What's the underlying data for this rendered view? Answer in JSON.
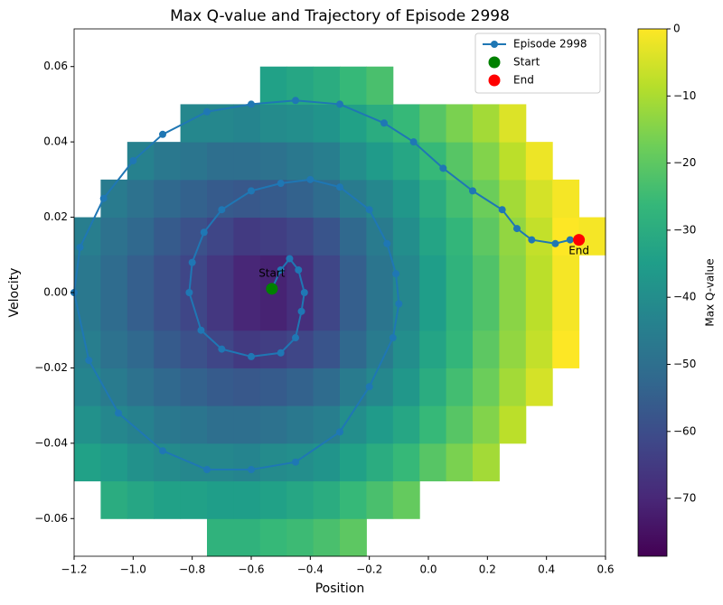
{
  "chart_data": {
    "type": "heatmap",
    "title": "Max Q-value and Trajectory of Episode 2998",
    "x_label": "Position",
    "y_label": "Velocity",
    "colorbar_label": "Max Q-value",
    "colormap": "viridis",
    "xlim": [
      -1.2,
      0.6
    ],
    "ylim": [
      -0.07,
      0.07
    ],
    "clim": [
      -78.6,
      0
    ],
    "xticks": [
      {
        "value": -1.2,
        "label": "−1.2"
      },
      {
        "value": -1.0,
        "label": "−1.0"
      },
      {
        "value": -0.8,
        "label": "−0.8"
      },
      {
        "value": -0.6,
        "label": "−0.6"
      },
      {
        "value": -0.4,
        "label": "−0.4"
      },
      {
        "value": -0.2,
        "label": "−0.2"
      },
      {
        "value": 0,
        "label": "0.0"
      },
      0.2,
      0.4,
      0.6
    ],
    "yticks": [
      {
        "value": -0.06,
        "label": "−0.06"
      },
      {
        "value": -0.04,
        "label": "−0.04"
      },
      {
        "value": -0.02,
        "label": "−0.02"
      },
      {
        "value": 0,
        "label": "0.00"
      },
      0.02,
      0.04,
      0.06
    ],
    "cticks": [
      0,
      {
        "value": -10,
        "label": "−10"
      },
      {
        "value": -20,
        "label": "−20"
      },
      {
        "value": -30,
        "label": "−30"
      },
      {
        "value": -40,
        "label": "−40"
      },
      {
        "value": -50,
        "label": "−50"
      },
      {
        "value": -60,
        "label": "−60"
      },
      {
        "value": -70,
        "label": "−70"
      }
    ],
    "heatmap": {
      "x_edges": [
        -1.2,
        -1.11,
        -1.02,
        -0.93,
        -0.84,
        -0.75,
        -0.66,
        -0.57,
        -0.48,
        -0.39,
        -0.3,
        -0.21,
        -0.12,
        -0.03,
        0.06,
        0.15,
        0.24,
        0.33,
        0.42,
        0.51,
        0.6
      ],
      "y_edges": [
        -0.07,
        -0.06,
        -0.05,
        -0.04,
        -0.03,
        -0.02,
        -0.01,
        0,
        0.01,
        0.02,
        0.03,
        0.04,
        0.05,
        0.06,
        0.07
      ],
      "values": [
        [
          null,
          null,
          null,
          null,
          null,
          -28,
          -28,
          -26,
          -25,
          -23,
          -20,
          null,
          null,
          null,
          null,
          null,
          null,
          null,
          null,
          null
        ],
        [
          null,
          -30,
          -32,
          -34,
          -34,
          -35,
          -35,
          -34,
          -32,
          -30,
          -26,
          -23,
          -19,
          null,
          null,
          null,
          null,
          null,
          null,
          null
        ],
        [
          -34,
          -36,
          -39,
          -41,
          -42,
          -42,
          -43,
          -41,
          -40,
          -38,
          -34,
          -30,
          -26,
          -21,
          -16,
          -11,
          null,
          null,
          null,
          null
        ],
        [
          -39,
          -42,
          -44,
          -47,
          -48,
          -50,
          -50,
          -49,
          -47,
          -45,
          -40,
          -36,
          -32,
          -26,
          -21,
          -15,
          -8,
          null,
          null,
          null
        ],
        [
          -43,
          -46,
          -49,
          -52,
          -54,
          -56,
          -57,
          -56,
          -54,
          -51,
          -46,
          -42,
          -37,
          -30,
          -24,
          -18,
          -11,
          -5,
          null,
          null
        ],
        [
          -45,
          -49,
          -52,
          -56,
          -59,
          -62,
          -65,
          -64,
          -62,
          -58,
          -52,
          -46,
          -40,
          -33,
          -27,
          -20,
          -13,
          -7,
          0,
          null
        ],
        [
          -47,
          -51,
          -55,
          -59,
          -62,
          -66,
          -70,
          -71,
          -68,
          -62,
          -55,
          -48,
          -42,
          -35,
          -28,
          -22,
          -14,
          -8,
          -1,
          null
        ],
        [
          -47,
          -51,
          -55,
          -59,
          -62,
          -66,
          -70,
          -71,
          -68,
          -62,
          -55,
          -48,
          -42,
          -35,
          -28,
          -22,
          -14,
          -8,
          -1,
          null
        ],
        [
          -45,
          -49,
          -52,
          -56,
          -59,
          -62,
          -65,
          -64,
          -62,
          -58,
          -52,
          -46,
          -40,
          -33,
          -27,
          -20,
          -13,
          -7,
          0,
          -1
        ],
        [
          null,
          -46,
          -49,
          -52,
          -54,
          -56,
          -57,
          -56,
          -54,
          -51,
          -46,
          -42,
          -37,
          -30,
          -24,
          -18,
          -11,
          -5,
          -1,
          null
        ],
        [
          null,
          null,
          -44,
          -47,
          -48,
          -50,
          -50,
          -49,
          -47,
          -45,
          -40,
          -36,
          -32,
          -26,
          -21,
          -15,
          -8,
          -2,
          null,
          null
        ],
        [
          null,
          null,
          null,
          null,
          -42,
          -42,
          -43,
          -41,
          -40,
          -38,
          -34,
          -30,
          -26,
          -21,
          -16,
          -11,
          -4,
          null,
          null,
          null
        ],
        [
          null,
          null,
          null,
          null,
          null,
          null,
          null,
          -34,
          -32,
          -30,
          -26,
          -23,
          null,
          null,
          null,
          null,
          null,
          null,
          null,
          null
        ],
        [
          null,
          null,
          null,
          null,
          null,
          null,
          null,
          null,
          null,
          null,
          null,
          null,
          null,
          null,
          null,
          null,
          null,
          null,
          null,
          null
        ]
      ]
    },
    "series": [
      {
        "name": "Episode 2998",
        "color": "#1f77b4",
        "kind": "line",
        "x": [
          -0.53,
          -0.5,
          -0.47,
          -0.44,
          -0.42,
          -0.43,
          -0.45,
          -0.5,
          -0.6,
          -0.7,
          -0.77,
          -0.81,
          -0.8,
          -0.76,
          -0.7,
          -0.6,
          -0.5,
          -0.4,
          -0.3,
          -0.2,
          -0.14,
          -0.11,
          -0.1,
          -0.12,
          -0.2,
          -0.3,
          -0.45,
          -0.6,
          -0.75,
          -0.9,
          -1.05,
          -1.15,
          -1.2,
          -1.18,
          -1.1,
          -1.0,
          -0.9,
          -0.75,
          -0.6,
          -0.45,
          -0.3,
          -0.15,
          -0.05,
          0.05,
          0.15,
          0.25,
          0.3,
          0.35,
          0.43,
          0.48,
          0.51
        ],
        "y": [
          0.001,
          0.006,
          0.009,
          0.006,
          0.0,
          -0.005,
          -0.012,
          -0.016,
          -0.017,
          -0.015,
          -0.01,
          0.0,
          0.008,
          0.016,
          0.022,
          0.027,
          0.029,
          0.03,
          0.028,
          0.022,
          0.013,
          0.005,
          -0.003,
          -0.012,
          -0.025,
          -0.037,
          -0.045,
          -0.047,
          -0.047,
          -0.042,
          -0.032,
          -0.018,
          0.0,
          0.012,
          0.025,
          0.035,
          0.042,
          0.048,
          0.05,
          0.051,
          0.05,
          0.045,
          0.04,
          0.033,
          0.027,
          0.022,
          0.017,
          0.014,
          0.013,
          0.014,
          0.014
        ]
      },
      {
        "name": "Start",
        "color": "green",
        "kind": "scatter",
        "x": [
          -0.53
        ],
        "y": [
          0.001
        ]
      },
      {
        "name": "End",
        "color": "red",
        "kind": "scatter",
        "x": [
          0.51
        ],
        "y": [
          0.014
        ]
      }
    ],
    "annotations": [
      {
        "text": "Start",
        "x": -0.53,
        "y": 0.005
      },
      {
        "text": "End",
        "x": 0.51,
        "y": 0.011
      }
    ],
    "legend": "upper right"
  }
}
